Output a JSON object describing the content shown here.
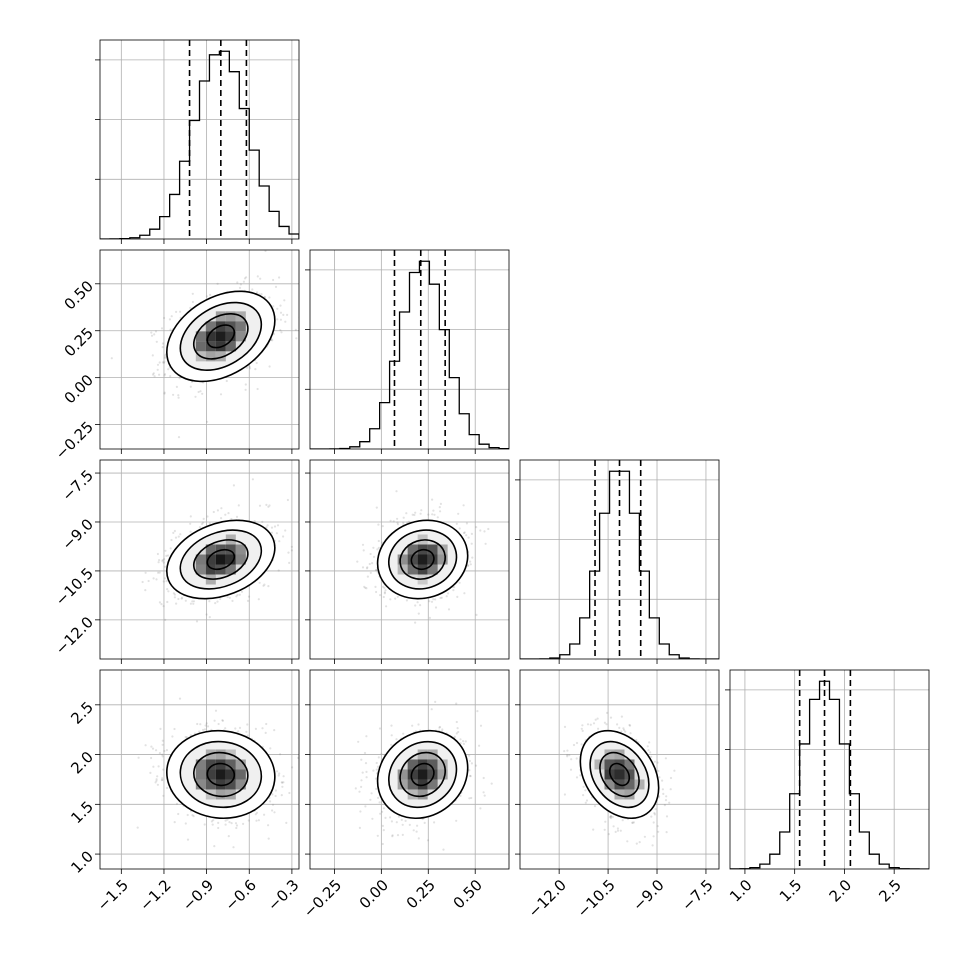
{
  "chart_data": {
    "type": "corner",
    "title": "",
    "parameters": [
      {
        "range": [
          -1.65,
          -0.25
        ],
        "ticks": [
          -1.5,
          -1.2,
          -0.9,
          -0.6,
          -0.3
        ],
        "tick_labels": [
          "−1.5",
          "−1.2",
          "−0.9",
          "−0.6",
          "−0.3"
        ],
        "center": -0.8,
        "sigma": 0.19,
        "quantiles": [
          -1.02,
          -0.8,
          -0.62
        ]
      },
      {
        "range": [
          -0.38,
          0.68
        ],
        "ticks": [
          -0.25,
          0.0,
          0.25,
          0.5
        ],
        "tick_labels": [
          "−0.25",
          "0.00",
          "0.25",
          "0.50"
        ],
        "center": 0.22,
        "sigma": 0.12,
        "quantiles": [
          0.07,
          0.21,
          0.34
        ]
      },
      {
        "range": [
          -13.2,
          -7.1
        ],
        "ticks": [
          -12.0,
          -10.5,
          -9.0,
          -7.5
        ],
        "tick_labels": [
          "−12.0",
          "−10.5",
          "−9.0",
          "−7.5"
        ],
        "center": -10.15,
        "sigma": 0.6,
        "quantiles": [
          -10.9,
          -10.15,
          -9.5
        ]
      },
      {
        "range": [
          0.85,
          2.85
        ],
        "ticks": [
          1.0,
          1.5,
          2.0,
          2.5
        ],
        "tick_labels": [
          "1.0",
          "1.5",
          "2.0",
          "2.5"
        ],
        "center": 1.8,
        "sigma": 0.22,
        "quantiles": [
          1.55,
          1.8,
          2.06
        ]
      }
    ],
    "correlations": [
      [
        0,
        1,
        0.35
      ],
      [
        0,
        2,
        0.3
      ],
      [
        0,
        3,
        -0.05
      ],
      [
        1,
        2,
        0.1
      ],
      [
        1,
        3,
        0.15
      ],
      [
        2,
        3,
        -0.3
      ]
    ],
    "contour_levels": [
      0.5,
      1.0,
      1.5,
      2.0
    ],
    "histogram_bins": 20,
    "grid": true,
    "colors": {
      "density": "#000000",
      "scatter": "#7a7a7a",
      "grid": "#b0b0b0"
    }
  }
}
